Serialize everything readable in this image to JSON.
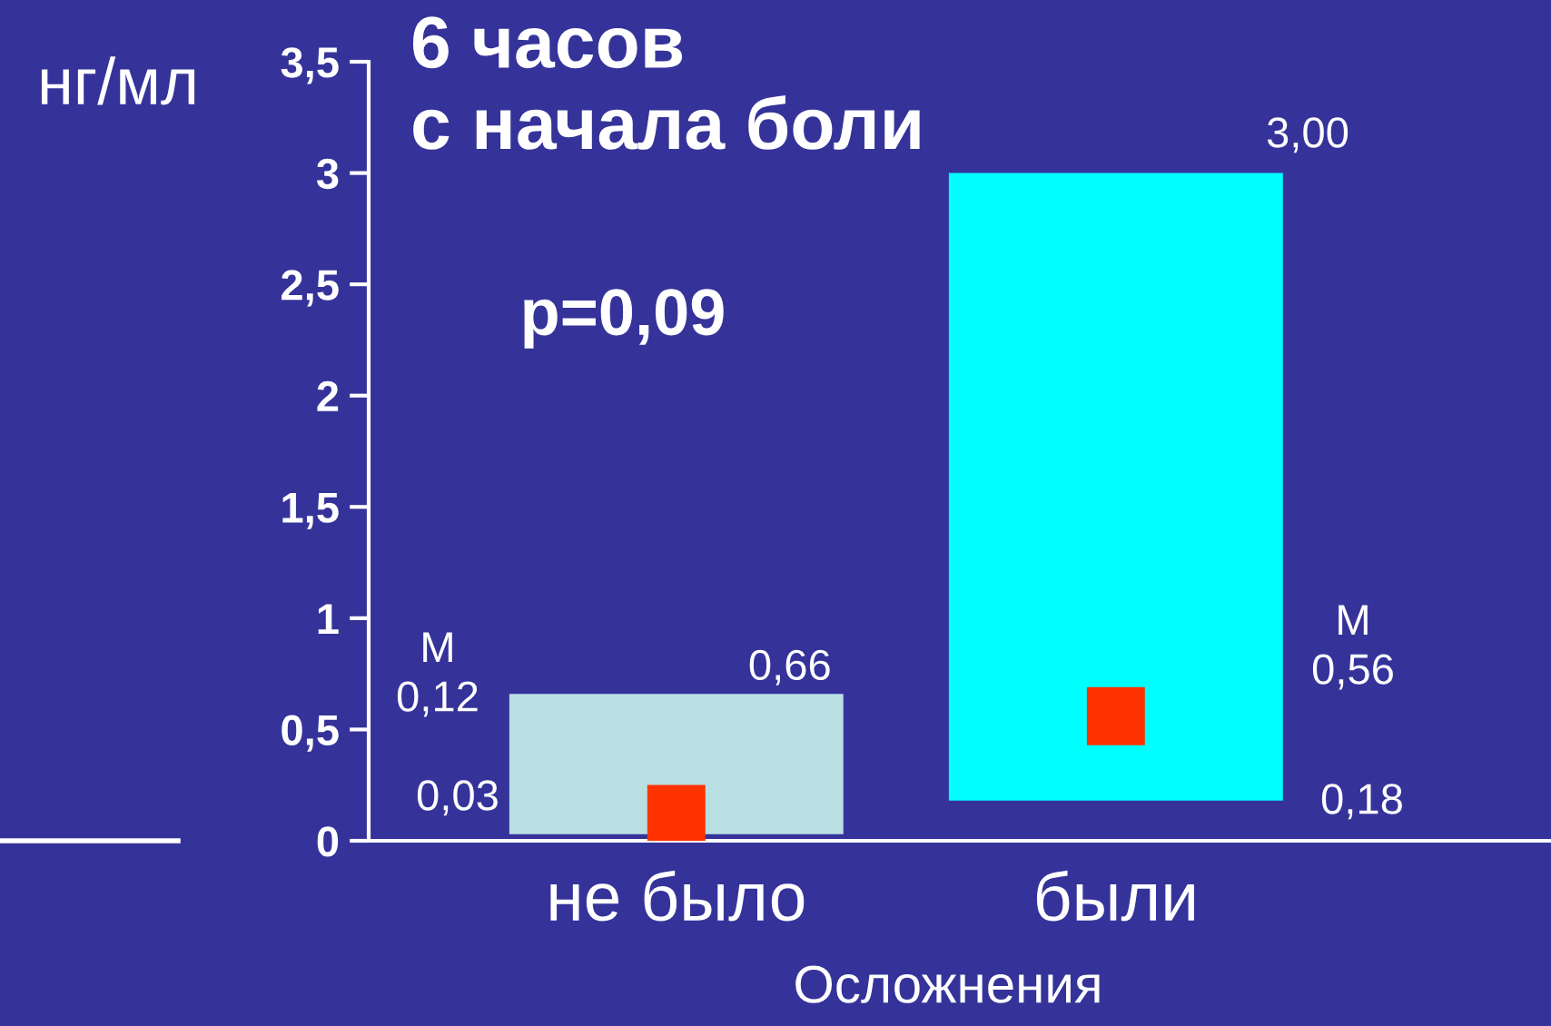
{
  "chart_data": {
    "type": "bar",
    "title": "6 часов\nс начала боли",
    "xlabel": "Осложнения",
    "ylabel": "нг/мл",
    "categories": [
      "не было",
      "были"
    ],
    "series": [
      {
        "colors": [
          "#b9dfe3",
          "#00ffff"
        ],
        "base": [
          0.03,
          0.18
        ],
        "values": [
          0.63,
          2.82
        ]
      },
      {
        "type": "scatter",
        "x": [
          "не было",
          "были"
        ],
        "values": [
          0.12,
          0.56
        ],
        "color": "#ff3300",
        "marker": "square"
      }
    ],
    "ylim": [
      0,
      3.5
    ],
    "yticks": [
      0,
      {
        "value": 0.5,
        "label": "0,5"
      },
      1,
      {
        "value": 1.5,
        "label": "1,5"
      },
      2,
      {
        "value": 2.5,
        "label": "2,5"
      },
      3,
      {
        "value": 3.5,
        "label": "3,5"
      }
    ],
    "annotations": [
      "p=0,09",
      {
        "text": "0,66",
        "x": "не было",
        "y": 0.66
      },
      "3,00",
      "0,03",
      "0,18",
      "М\n0,12",
      "М\n0,56"
    ]
  }
}
